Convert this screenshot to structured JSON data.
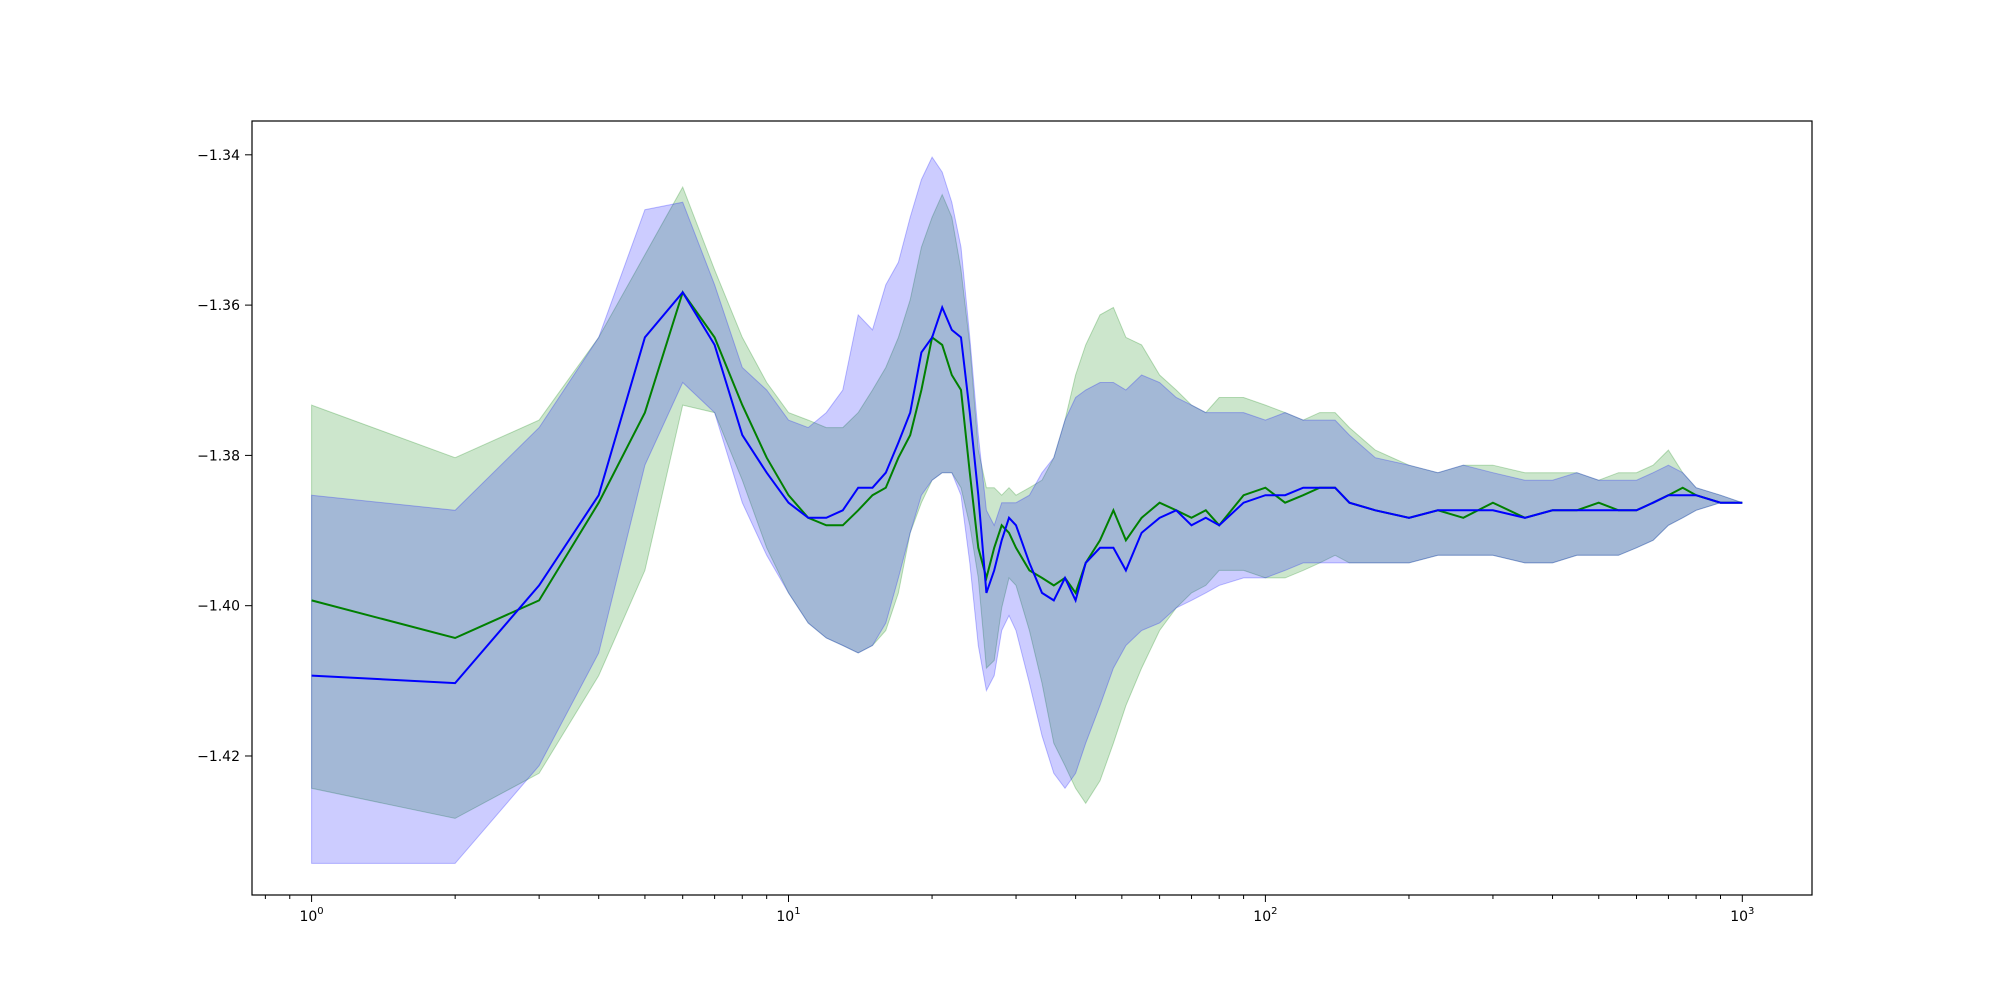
{
  "chart_data": {
    "type": "line",
    "xscale": "log",
    "xlim": [
      0.75,
      1400
    ],
    "ylim": [
      -1.4385,
      -1.3355
    ],
    "x_ticks": [
      {
        "value": 1,
        "base": "10",
        "exp": "0"
      },
      {
        "value": 10,
        "base": "10",
        "exp": "1"
      },
      {
        "value": 100,
        "base": "10",
        "exp": "2"
      },
      {
        "value": 1000,
        "base": "10",
        "exp": "3"
      }
    ],
    "y_ticks": [
      {
        "value": -1.34,
        "label": "−1.34"
      },
      {
        "value": -1.36,
        "label": "−1.36"
      },
      {
        "value": -1.38,
        "label": "−1.38"
      },
      {
        "value": -1.4,
        "label": "−1.40"
      },
      {
        "value": -1.42,
        "label": "−1.42"
      }
    ],
    "grid": false,
    "legend": "none",
    "series": [
      {
        "color": "#008000",
        "band_color": "#008000",
        "x": [
          1,
          2,
          3,
          4,
          5,
          6,
          7,
          8,
          9,
          10,
          11,
          12,
          13,
          14,
          15,
          16,
          17,
          18,
          19,
          20,
          21,
          22,
          23,
          24,
          25,
          26,
          27,
          28,
          29,
          30,
          32,
          34,
          36,
          38,
          40,
          42,
          45,
          48,
          51,
          55,
          60,
          65,
          70,
          75,
          80,
          90,
          100,
          110,
          120,
          130,
          140,
          150,
          170,
          200,
          230,
          260,
          300,
          350,
          400,
          450,
          500,
          550,
          600,
          650,
          700,
          750,
          800,
          900,
          1000
        ],
        "y": [
          -1.3993,
          -1.4043,
          -1.3993,
          -1.3863,
          -1.3743,
          -1.3583,
          -1.3643,
          -1.3733,
          -1.3803,
          -1.3853,
          -1.3883,
          -1.3893,
          -1.3893,
          -1.3873,
          -1.3853,
          -1.3843,
          -1.3803,
          -1.3773,
          -1.3713,
          -1.3643,
          -1.3653,
          -1.3693,
          -1.3713,
          -1.3823,
          -1.3923,
          -1.3963,
          -1.3923,
          -1.3893,
          -1.3903,
          -1.3923,
          -1.3953,
          -1.3963,
          -1.3973,
          -1.3963,
          -1.3983,
          -1.3943,
          -1.3913,
          -1.3873,
          -1.3913,
          -1.3883,
          -1.3863,
          -1.3873,
          -1.3883,
          -1.3873,
          -1.3893,
          -1.3853,
          -1.3843,
          -1.3863,
          -1.3853,
          -1.3843,
          -1.3843,
          -1.3863,
          -1.3873,
          -1.3883,
          -1.3873,
          -1.3883,
          -1.3863,
          -1.3883,
          -1.3873,
          -1.3873,
          -1.3863,
          -1.3873,
          -1.3873,
          -1.3863,
          -1.3853,
          -1.3843,
          -1.3853,
          -1.3863,
          -1.3863
        ],
        "upper": [
          -1.3733,
          -1.3803,
          -1.3753,
          -1.3643,
          -1.3533,
          -1.3443,
          -1.3553,
          -1.3643,
          -1.3703,
          -1.3743,
          -1.3753,
          -1.3763,
          -1.3763,
          -1.3743,
          -1.3713,
          -1.3683,
          -1.3643,
          -1.3593,
          -1.3523,
          -1.3483,
          -1.3453,
          -1.3483,
          -1.3553,
          -1.3653,
          -1.3793,
          -1.3843,
          -1.3843,
          -1.3853,
          -1.3843,
          -1.3853,
          -1.3843,
          -1.3833,
          -1.3803,
          -1.3753,
          -1.3693,
          -1.3653,
          -1.3613,
          -1.3603,
          -1.3643,
          -1.3653,
          -1.3693,
          -1.3713,
          -1.3733,
          -1.3743,
          -1.3723,
          -1.3723,
          -1.3733,
          -1.3743,
          -1.3753,
          -1.3743,
          -1.3743,
          -1.3763,
          -1.3793,
          -1.3813,
          -1.3823,
          -1.3813,
          -1.3813,
          -1.3823,
          -1.3823,
          -1.3823,
          -1.3833,
          -1.3823,
          -1.3823,
          -1.3813,
          -1.3793,
          -1.3823,
          -1.3843,
          -1.3853,
          -1.3863
        ],
        "lower": [
          -1.4243,
          -1.4283,
          -1.4223,
          -1.4093,
          -1.3953,
          -1.3733,
          -1.3743,
          -1.3833,
          -1.3923,
          -1.3983,
          -1.4023,
          -1.4043,
          -1.4053,
          -1.4063,
          -1.4053,
          -1.4033,
          -1.3983,
          -1.3903,
          -1.3863,
          -1.3833,
          -1.3823,
          -1.3823,
          -1.3843,
          -1.3893,
          -1.3963,
          -1.4083,
          -1.4073,
          -1.4003,
          -1.3963,
          -1.3973,
          -1.4033,
          -1.4103,
          -1.4183,
          -1.4213,
          -1.4243,
          -1.4263,
          -1.4233,
          -1.4183,
          -1.4133,
          -1.4083,
          -1.4033,
          -1.4003,
          -1.3983,
          -1.3973,
          -1.3953,
          -1.3953,
          -1.3963,
          -1.3963,
          -1.3953,
          -1.3943,
          -1.3933,
          -1.3943,
          -1.3943,
          -1.3943,
          -1.3933,
          -1.3933,
          -1.3933,
          -1.3943,
          -1.3943,
          -1.3933,
          -1.3933,
          -1.3933,
          -1.3923,
          -1.3913,
          -1.3893,
          -1.3883,
          -1.3873,
          -1.3863,
          -1.3863
        ]
      },
      {
        "color": "#0000ff",
        "band_color": "#0000ff",
        "x": [
          1,
          2,
          3,
          4,
          5,
          6,
          7,
          8,
          9,
          10,
          11,
          12,
          13,
          14,
          15,
          16,
          17,
          18,
          19,
          20,
          21,
          22,
          23,
          24,
          25,
          26,
          27,
          28,
          29,
          30,
          32,
          34,
          36,
          38,
          40,
          42,
          45,
          48,
          51,
          55,
          60,
          65,
          70,
          75,
          80,
          90,
          100,
          110,
          120,
          130,
          140,
          150,
          170,
          200,
          230,
          260,
          300,
          350,
          400,
          450,
          500,
          550,
          600,
          650,
          700,
          750,
          800,
          900,
          1000
        ],
        "y": [
          -1.4093,
          -1.4103,
          -1.3973,
          -1.3853,
          -1.3643,
          -1.3583,
          -1.3653,
          -1.3773,
          -1.3823,
          -1.3863,
          -1.3883,
          -1.3883,
          -1.3873,
          -1.3843,
          -1.3843,
          -1.3823,
          -1.3783,
          -1.3743,
          -1.3663,
          -1.3643,
          -1.3603,
          -1.3633,
          -1.3643,
          -1.3743,
          -1.3853,
          -1.3983,
          -1.3953,
          -1.3913,
          -1.3883,
          -1.3893,
          -1.3943,
          -1.3983,
          -1.3993,
          -1.3963,
          -1.3993,
          -1.3943,
          -1.3923,
          -1.3923,
          -1.3953,
          -1.3903,
          -1.3883,
          -1.3873,
          -1.3893,
          -1.3883,
          -1.3893,
          -1.3863,
          -1.3853,
          -1.3853,
          -1.3843,
          -1.3843,
          -1.3843,
          -1.3863,
          -1.3873,
          -1.3883,
          -1.3873,
          -1.3873,
          -1.3873,
          -1.3883,
          -1.3873,
          -1.3873,
          -1.3873,
          -1.3873,
          -1.3873,
          -1.3863,
          -1.3853,
          -1.3853,
          -1.3853,
          -1.3863,
          -1.3863
        ],
        "upper": [
          -1.3853,
          -1.3873,
          -1.3763,
          -1.3643,
          -1.3473,
          -1.3463,
          -1.3573,
          -1.3683,
          -1.3713,
          -1.3753,
          -1.3763,
          -1.3743,
          -1.3713,
          -1.3613,
          -1.3633,
          -1.3573,
          -1.3543,
          -1.3483,
          -1.3433,
          -1.3403,
          -1.3423,
          -1.3463,
          -1.3523,
          -1.3643,
          -1.3773,
          -1.3873,
          -1.3893,
          -1.3863,
          -1.3863,
          -1.3863,
          -1.3853,
          -1.3823,
          -1.3803,
          -1.3753,
          -1.3723,
          -1.3713,
          -1.3703,
          -1.3703,
          -1.3713,
          -1.3693,
          -1.3703,
          -1.3723,
          -1.3733,
          -1.3743,
          -1.3743,
          -1.3743,
          -1.3753,
          -1.3743,
          -1.3753,
          -1.3753,
          -1.3753,
          -1.3773,
          -1.3803,
          -1.3813,
          -1.3823,
          -1.3813,
          -1.3823,
          -1.3833,
          -1.3833,
          -1.3823,
          -1.3833,
          -1.3833,
          -1.3833,
          -1.3823,
          -1.3813,
          -1.3823,
          -1.3843,
          -1.3853,
          -1.3863
        ],
        "lower": [
          -1.4343,
          -1.4343,
          -1.4213,
          -1.4063,
          -1.3813,
          -1.3703,
          -1.3743,
          -1.3863,
          -1.3933,
          -1.3983,
          -1.4023,
          -1.4043,
          -1.4053,
          -1.4063,
          -1.4053,
          -1.4023,
          -1.3963,
          -1.3903,
          -1.3853,
          -1.3833,
          -1.3823,
          -1.3823,
          -1.3853,
          -1.3943,
          -1.4053,
          -1.4113,
          -1.4093,
          -1.4033,
          -1.4013,
          -1.4033,
          -1.4103,
          -1.4173,
          -1.4223,
          -1.4243,
          -1.4223,
          -1.4183,
          -1.4133,
          -1.4083,
          -1.4053,
          -1.4033,
          -1.4023,
          -1.4003,
          -1.3993,
          -1.3983,
          -1.3973,
          -1.3963,
          -1.3963,
          -1.3953,
          -1.3943,
          -1.3943,
          -1.3943,
          -1.3943,
          -1.3943,
          -1.3943,
          -1.3933,
          -1.3933,
          -1.3933,
          -1.3943,
          -1.3943,
          -1.3933,
          -1.3933,
          -1.3933,
          -1.3923,
          -1.3913,
          -1.3893,
          -1.3883,
          -1.3873,
          -1.3863,
          -1.3863
        ]
      }
    ]
  }
}
